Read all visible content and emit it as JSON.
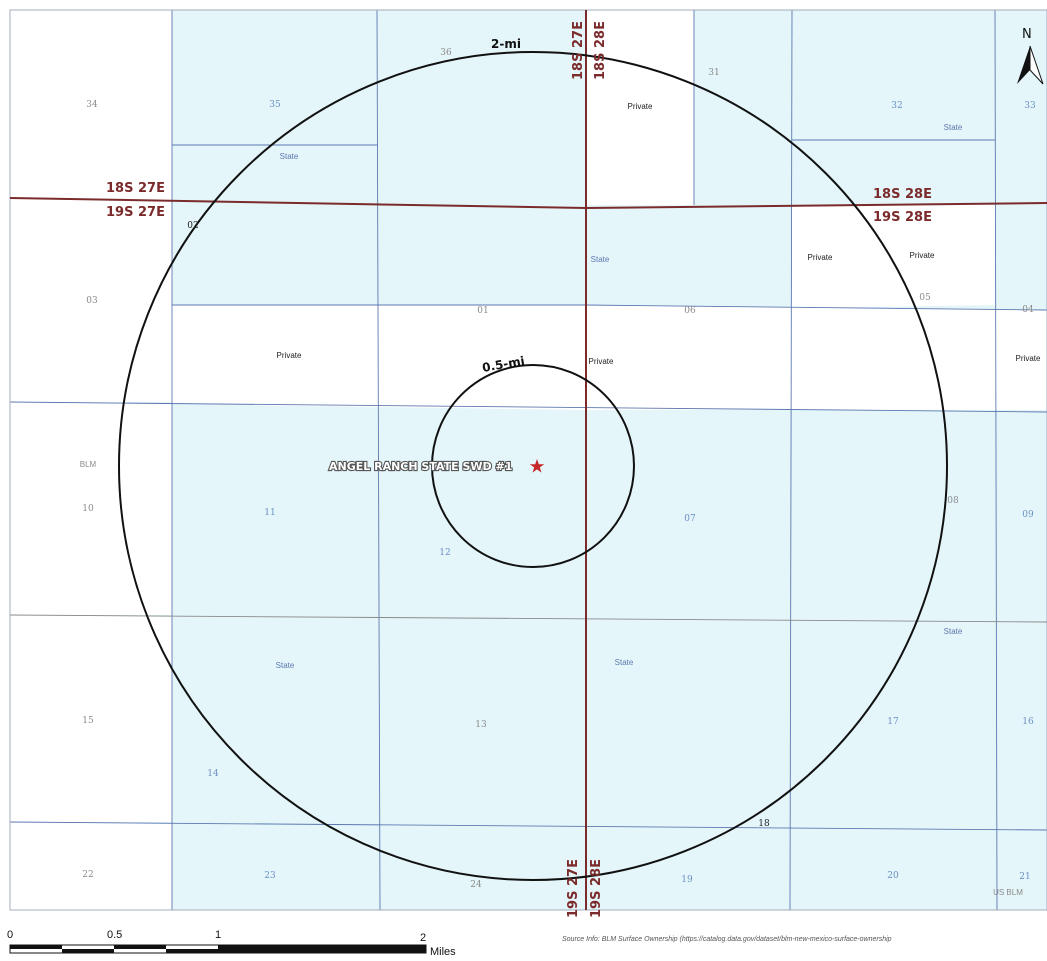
{
  "colors": {
    "state_fill": "#e4f6fa",
    "private_fill": "#ffffff",
    "blm_fill": "#ffffff",
    "grid_line": "#5d78b0",
    "section_line": "#8a8a8a",
    "township_line": "#7b2b2b",
    "ring": "#111111",
    "well_star": "#c62828"
  },
  "compass": {
    "label": "N"
  },
  "sections": [
    {
      "label": "34",
      "tone": "grey"
    },
    {
      "label": "35",
      "tone": "blue"
    },
    {
      "label": "36",
      "tone": "grey"
    },
    {
      "label": "31",
      "tone": "grey"
    },
    {
      "label": "32",
      "tone": "blue"
    },
    {
      "label": "33",
      "tone": "blue"
    },
    {
      "label": "02",
      "tone": "dark"
    },
    {
      "label": "03",
      "tone": "grey"
    },
    {
      "label": "01",
      "tone": "grey"
    },
    {
      "label": "06",
      "tone": "grey"
    },
    {
      "label": "05",
      "tone": "grey"
    },
    {
      "label": "04",
      "tone": "grey"
    },
    {
      "label": "10",
      "tone": "grey"
    },
    {
      "label": "11",
      "tone": "blue"
    },
    {
      "label": "12",
      "tone": "blue"
    },
    {
      "label": "07",
      "tone": "blue"
    },
    {
      "label": "08",
      "tone": "grey"
    },
    {
      "label": "09",
      "tone": "blue"
    },
    {
      "label": "15",
      "tone": "grey"
    },
    {
      "label": "14",
      "tone": "blue"
    },
    {
      "label": "13",
      "tone": "grey"
    },
    {
      "label": "17",
      "tone": "blue"
    },
    {
      "label": "16",
      "tone": "blue"
    },
    {
      "label": "18",
      "tone": "dark"
    },
    {
      "label": "22",
      "tone": "grey"
    },
    {
      "label": "23",
      "tone": "blue"
    },
    {
      "label": "24",
      "tone": "grey"
    },
    {
      "label": "19",
      "tone": "blue"
    },
    {
      "label": "20",
      "tone": "blue"
    },
    {
      "label": "21",
      "tone": "blue"
    }
  ],
  "ownership": [
    {
      "label": "Private",
      "tone": "dark"
    },
    {
      "label": "State",
      "tone": "blue"
    },
    {
      "label": "State",
      "tone": "blue"
    },
    {
      "label": "State",
      "tone": "blue"
    },
    {
      "label": "Private",
      "tone": "dark"
    },
    {
      "label": "Private",
      "tone": "dark"
    },
    {
      "label": "Private",
      "tone": "dark"
    },
    {
      "label": "Private",
      "tone": "dark"
    },
    {
      "label": "Private",
      "tone": "dark"
    },
    {
      "label": "BLM",
      "tone": "grey"
    },
    {
      "label": "State",
      "tone": "blue"
    },
    {
      "label": "State",
      "tone": "blue"
    },
    {
      "label": "State",
      "tone": "blue"
    },
    {
      "label": "US BLM",
      "tone": "grey"
    }
  ],
  "townships": {
    "north_west": "18S 27E",
    "south_west": "19S 27E",
    "north_east": "18S 28E",
    "south_east": "19S 28E",
    "top_west": "18S 27E",
    "top_east": "18S 28E",
    "bottom_west": "19S 27E",
    "bottom_east": "19S 28E"
  },
  "rings": {
    "outer_label": "2-mi",
    "inner_label": "0.5-mi"
  },
  "well": {
    "label": "ANGEL RANCH STATE SWD #1"
  },
  "scale_bar": {
    "ticks": [
      "0",
      "0.5",
      "1",
      "2"
    ],
    "unit": "Miles"
  },
  "source": "Source Info: BLM Surface Ownership (https://catalog.data.gov/dataset/blm-new-mexico-surface-ownership"
}
